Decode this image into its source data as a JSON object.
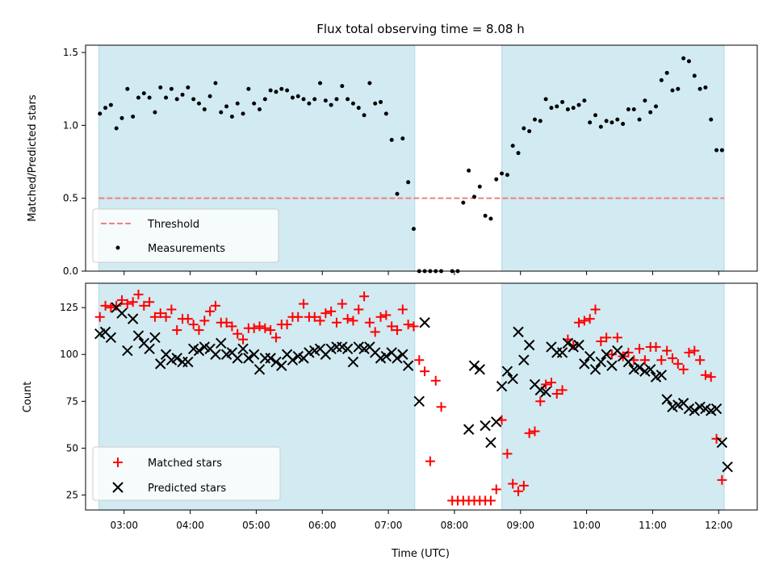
{
  "chart_data": [
    {
      "type": "scatter",
      "title": "Flux total observing time = 8.08 h",
      "ylabel": "Matched/Predicted stars",
      "xlabel": "",
      "ylim": [
        0,
        1.55
      ],
      "xlim": [
        "02:25",
        "12:35"
      ],
      "x_unit": "time (UTC)",
      "shaded_intervals": [
        [
          "02:37",
          "07:24"
        ],
        [
          "08:43",
          "12:05"
        ]
      ],
      "shade_color": "#add8e6",
      "threshold": {
        "name": "Threshold",
        "value": 0.5,
        "color": "#f08080",
        "style": "dashed"
      },
      "yticks": [
        0.0,
        0.5,
        1.0,
        1.5
      ],
      "ytick_labels": [
        "0.0",
        "0.5",
        "1.0",
        "1.5"
      ],
      "legend": {
        "placement": "lower-left",
        "entries": [
          "Threshold",
          "Measurements"
        ]
      },
      "series": [
        {
          "name": "Measurements",
          "color": "#000000",
          "marker": "dot",
          "x": [
            "02:38",
            "02:43",
            "02:48",
            "02:53",
            "02:58",
            "03:03",
            "03:08",
            "03:13",
            "03:18",
            "03:23",
            "03:28",
            "03:33",
            "03:38",
            "03:43",
            "03:48",
            "03:53",
            "03:58",
            "04:03",
            "04:08",
            "04:13",
            "04:18",
            "04:23",
            "04:28",
            "04:33",
            "04:38",
            "04:43",
            "04:48",
            "04:53",
            "04:58",
            "05:03",
            "05:08",
            "05:13",
            "05:18",
            "05:23",
            "05:28",
            "05:33",
            "05:38",
            "05:43",
            "05:48",
            "05:53",
            "05:58",
            "06:03",
            "06:08",
            "06:13",
            "06:18",
            "06:23",
            "06:28",
            "06:33",
            "06:38",
            "06:43",
            "06:48",
            "06:53",
            "06:58",
            "07:03",
            "07:08",
            "07:13",
            "07:18",
            "07:23",
            "07:28",
            "07:33",
            "07:38",
            "07:43",
            "07:48",
            "07:58",
            "08:03",
            "08:08",
            "08:13",
            "08:18",
            "08:23",
            "08:28",
            "08:33",
            "08:38",
            "08:43",
            "08:48",
            "08:53",
            "08:58",
            "09:03",
            "09:08",
            "09:13",
            "09:18",
            "09:23",
            "09:28",
            "09:33",
            "09:38",
            "09:43",
            "09:48",
            "09:53",
            "09:58",
            "10:03",
            "10:08",
            "10:13",
            "10:18",
            "10:23",
            "10:28",
            "10:33",
            "10:38",
            "10:43",
            "10:48",
            "10:53",
            "10:58",
            "11:03",
            "11:08",
            "11:13",
            "11:18",
            "11:23",
            "11:28",
            "11:33",
            "11:38",
            "11:43",
            "11:48",
            "11:53",
            "11:58",
            "12:03"
          ],
          "y": [
            1.08,
            1.12,
            1.14,
            0.98,
            1.05,
            1.25,
            1.06,
            1.19,
            1.22,
            1.19,
            1.09,
            1.26,
            1.19,
            1.25,
            1.18,
            1.21,
            1.26,
            1.18,
            1.15,
            1.11,
            1.2,
            1.29,
            1.09,
            1.13,
            1.06,
            1.15,
            1.08,
            1.25,
            1.15,
            1.11,
            1.18,
            1.24,
            1.23,
            1.25,
            1.24,
            1.19,
            1.2,
            1.18,
            1.15,
            1.18,
            1.29,
            1.17,
            1.14,
            1.18,
            1.27,
            1.18,
            1.15,
            1.12,
            1.07,
            1.29,
            1.15,
            1.16,
            1.08,
            0.9,
            0.53,
            0.91,
            0.61,
            0.29,
            0.0,
            0.0,
            0.0,
            0.0,
            0.0,
            0.0,
            0.0,
            0.47,
            0.69,
            0.51,
            0.58,
            0.38,
            0.36,
            0.63,
            0.67,
            0.66,
            0.86,
            0.81,
            0.98,
            0.96,
            1.04,
            1.03,
            1.18,
            1.12,
            1.13,
            1.16,
            1.11,
            1.12,
            1.14,
            1.17,
            1.02,
            1.07,
            0.99,
            1.03,
            1.02,
            1.04,
            1.01,
            1.11,
            1.11,
            1.04,
            1.17,
            1.09,
            1.13,
            1.31,
            1.36,
            1.24,
            1.25,
            1.46,
            1.44,
            1.34,
            1.25,
            1.26,
            1.04,
            0.83,
            0.83
          ]
        }
      ]
    },
    {
      "type": "scatter",
      "xlabel": "Time (UTC)",
      "ylabel": "Count",
      "ylim": [
        17,
        138
      ],
      "xlim": [
        "02:25",
        "12:35"
      ],
      "x_unit": "time (UTC)",
      "shaded_intervals": [
        [
          "02:37",
          "07:24"
        ],
        [
          "08:43",
          "12:05"
        ]
      ],
      "shade_color": "#add8e6",
      "xticks": [
        "03:00",
        "04:00",
        "05:00",
        "06:00",
        "07:00",
        "08:00",
        "09:00",
        "10:00",
        "11:00",
        "12:00"
      ],
      "yticks": [
        25,
        50,
        75,
        100,
        125
      ],
      "ytick_labels": [
        "25",
        "50",
        "75",
        "100",
        "125"
      ],
      "legend": {
        "placement": "lower-left",
        "entries": [
          "Matched stars",
          "Predicted stars"
        ]
      },
      "series": [
        {
          "name": "Matched stars",
          "color": "#ff0000",
          "marker": "plus",
          "x": [
            "02:38",
            "02:43",
            "02:48",
            "02:53",
            "02:58",
            "03:03",
            "03:08",
            "03:13",
            "03:18",
            "03:23",
            "03:28",
            "03:33",
            "03:38",
            "03:43",
            "03:48",
            "03:53",
            "03:58",
            "04:03",
            "04:08",
            "04:13",
            "04:18",
            "04:23",
            "04:28",
            "04:33",
            "04:38",
            "04:43",
            "04:48",
            "04:53",
            "04:58",
            "05:03",
            "05:08",
            "05:13",
            "05:18",
            "05:23",
            "05:28",
            "05:33",
            "05:38",
            "05:43",
            "05:48",
            "05:53",
            "05:58",
            "06:03",
            "06:08",
            "06:13",
            "06:18",
            "06:23",
            "06:28",
            "06:33",
            "06:38",
            "06:43",
            "06:48",
            "06:53",
            "06:58",
            "07:03",
            "07:08",
            "07:13",
            "07:18",
            "07:23",
            "07:28",
            "07:33",
            "07:38",
            "07:43",
            "07:48",
            "07:58",
            "08:03",
            "08:08",
            "08:13",
            "08:18",
            "08:23",
            "08:28",
            "08:33",
            "08:38",
            "08:43",
            "08:48",
            "08:53",
            "08:58",
            "09:03",
            "09:08",
            "09:13",
            "09:18",
            "09:23",
            "09:28",
            "09:33",
            "09:38",
            "09:43",
            "09:48",
            "09:53",
            "09:58",
            "10:03",
            "10:08",
            "10:13",
            "10:18",
            "10:23",
            "10:28",
            "10:33",
            "10:38",
            "10:43",
            "10:48",
            "10:53",
            "10:58",
            "11:03",
            "11:08",
            "11:13",
            "11:18",
            "11:23",
            "11:28",
            "11:33",
            "11:38",
            "11:43",
            "11:48",
            "11:53",
            "11:58",
            "12:03"
          ],
          "y": [
            120,
            126,
            125,
            126,
            129,
            127,
            128,
            132,
            126,
            128,
            120,
            122,
            120,
            124,
            113,
            119,
            119,
            116,
            113,
            118,
            123,
            126,
            117,
            117,
            115,
            111,
            108,
            114,
            114,
            115,
            114,
            113,
            109,
            116,
            116,
            120,
            120,
            127,
            120,
            120,
            118,
            122,
            123,
            117,
            127,
            119,
            118,
            124,
            131,
            117,
            112,
            120,
            121,
            115,
            113,
            124,
            116,
            115,
            97,
            91,
            43,
            86,
            72,
            22,
            22,
            22,
            22,
            22,
            22,
            22,
            22,
            28,
            65,
            47,
            31,
            27,
            30,
            58,
            59,
            75,
            84,
            85,
            79,
            81,
            108,
            105,
            117,
            118,
            119,
            124,
            107,
            109,
            100,
            109,
            99,
            101,
            97,
            103,
            97,
            104,
            104,
            97,
            102,
            98,
            95,
            92,
            101,
            102,
            97,
            89,
            88,
            55,
            33
          ]
        },
        {
          "name": "Predicted stars",
          "color": "#000000",
          "marker": "x",
          "x": [
            "02:38",
            "02:43",
            "02:48",
            "02:53",
            "02:58",
            "03:03",
            "03:08",
            "03:13",
            "03:18",
            "03:23",
            "03:28",
            "03:33",
            "03:38",
            "03:43",
            "03:48",
            "03:53",
            "03:58",
            "04:03",
            "04:08",
            "04:13",
            "04:18",
            "04:23",
            "04:28",
            "04:33",
            "04:38",
            "04:43",
            "04:48",
            "04:53",
            "04:58",
            "05:03",
            "05:08",
            "05:13",
            "05:18",
            "05:23",
            "05:28",
            "05:33",
            "05:38",
            "05:43",
            "05:48",
            "05:53",
            "05:58",
            "06:03",
            "06:08",
            "06:13",
            "06:18",
            "06:23",
            "06:28",
            "06:33",
            "06:38",
            "06:43",
            "06:48",
            "06:53",
            "06:58",
            "07:03",
            "07:08",
            "07:13",
            "07:18",
            "07:28",
            "07:33",
            "08:13",
            "08:18",
            "08:23",
            "08:28",
            "08:33",
            "08:38",
            "08:43",
            "08:48",
            "08:53",
            "08:58",
            "09:03",
            "09:08",
            "09:13",
            "09:18",
            "09:23",
            "09:28",
            "09:33",
            "09:38",
            "09:43",
            "09:48",
            "09:53",
            "09:58",
            "10:03",
            "10:08",
            "10:13",
            "10:18",
            "10:23",
            "10:28",
            "10:33",
            "10:38",
            "10:43",
            "10:48",
            "10:53",
            "10:58",
            "11:03",
            "11:08",
            "11:13",
            "11:18",
            "11:23",
            "11:28",
            "11:33",
            "11:38",
            "11:43",
            "11:48",
            "11:53",
            "11:58",
            "12:03",
            "12:08"
          ],
          "y": [
            111,
            112,
            109,
            125,
            122,
            102,
            119,
            110,
            106,
            103,
            109,
            95,
            100,
            97,
            98,
            96,
            96,
            103,
            102,
            104,
            103,
            100,
            106,
            100,
            101,
            98,
            103,
            98,
            100,
            92,
            98,
            98,
            96,
            94,
            100,
            97,
            99,
            98,
            101,
            102,
            103,
            100,
            103,
            104,
            104,
            103,
            96,
            104,
            103,
            104,
            101,
            98,
            99,
            101,
            98,
            100,
            94,
            75,
            117,
            60,
            94,
            92,
            62,
            53,
            64,
            83,
            91,
            87,
            112,
            97,
            105,
            84,
            81,
            80,
            104,
            101,
            101,
            106,
            104,
            105,
            95,
            99,
            92,
            96,
            100,
            94,
            102,
            99,
            96,
            92,
            93,
            91,
            92,
            88,
            89,
            76,
            72,
            73,
            74,
            71,
            70,
            72,
            71,
            70,
            71,
            53,
            40
          ]
        }
      ]
    }
  ]
}
